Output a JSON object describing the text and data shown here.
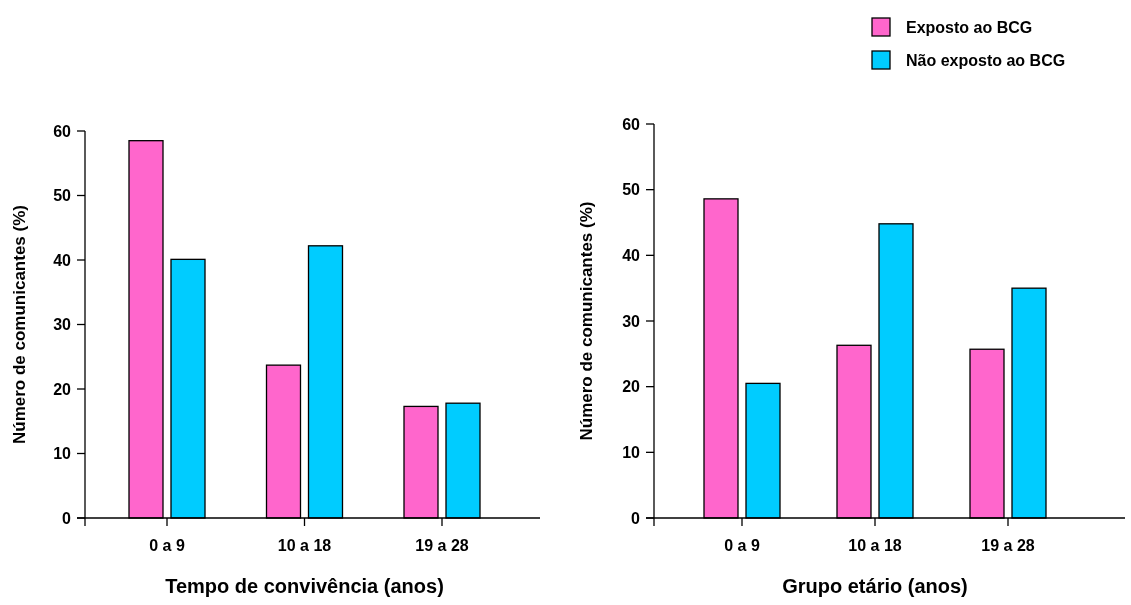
{
  "chart_data": [
    {
      "type": "bar",
      "xlabel": "Tempo de convivência (anos)",
      "ylabel": "Número de comunicantes (%)",
      "categories": [
        "0 a 9",
        "10 a 18",
        "19 a 28"
      ],
      "ylim": [
        0,
        60
      ],
      "yticks": [
        0,
        10,
        20,
        30,
        40,
        50,
        60
      ],
      "legend": false,
      "series": [
        {
          "color": "#ff66cc",
          "values": [
            58.5,
            23.7,
            17.3
          ]
        },
        {
          "color": "#00ccff",
          "values": [
            40.1,
            42.2,
            17.8
          ]
        }
      ]
    },
    {
      "type": "bar",
      "xlabel": "Grupo etário (anos)",
      "ylabel": "Número de comunicantes (%)",
      "categories": [
        "0 a 9",
        "10 a 18",
        "19 a 28"
      ],
      "ylim": [
        0,
        60
      ],
      "yticks": [
        0,
        10,
        20,
        30,
        40,
        50,
        60
      ],
      "legend": "top right",
      "series": [
        {
          "name": "Exposto ao BCG",
          "color": "#ff66cc",
          "values": [
            48.6,
            26.3,
            25.7
          ]
        },
        {
          "name": "Não exposto ao BCG",
          "color": "#00ccff",
          "values": [
            20.5,
            44.8,
            35.0
          ]
        }
      ]
    }
  ]
}
